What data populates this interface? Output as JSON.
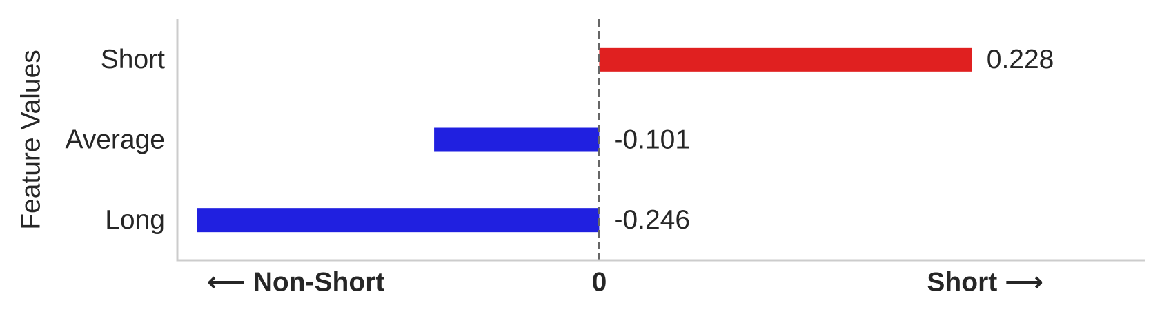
{
  "chart_data": {
    "type": "bar",
    "orientation": "horizontal",
    "categories": [
      "Short",
      "Average",
      "Long"
    ],
    "values": [
      0.228,
      -0.101,
      -0.246
    ],
    "value_labels": [
      "0.228",
      "-0.101",
      "-0.246"
    ],
    "ylabel": "Feature Values",
    "xlabel_left": "⟵  Non-Short",
    "xlabel_center": "0",
    "xlabel_right": "Short  ⟶",
    "xlim": [
      -0.258,
      0.334
    ],
    "reference_line": 0,
    "grid": false,
    "colors": {
      "positive": "#e02020",
      "negative": "#2020e0",
      "axis": "#cccccc",
      "reference_line": "#666666",
      "text": "#262626"
    }
  }
}
